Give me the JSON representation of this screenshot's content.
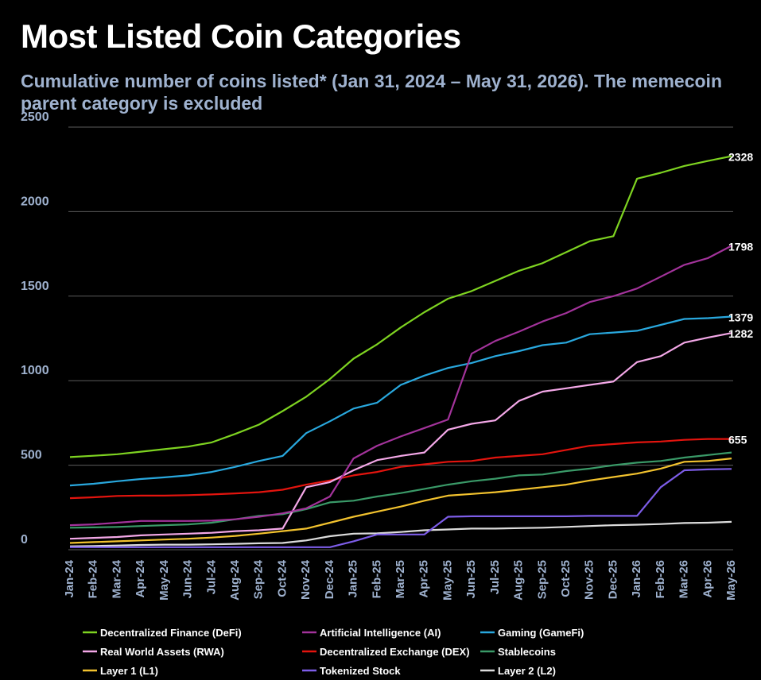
{
  "chart_data": {
    "type": "line",
    "title": "Most Listed Coin Categories",
    "subtitle": "Cumulative number of coins listed* (Jan 31, 2024 – May 31, 2026). The memecoin parent category is excluded",
    "categories": [
      "Jan-24",
      "Feb-24",
      "Mar-24",
      "Apr-24",
      "May-24",
      "Jun-24",
      "Jul-24",
      "Aug-24",
      "Sep-24",
      "Oct-24",
      "Nov-24",
      "Dec-24",
      "Jan-25",
      "Feb-25",
      "Mar-25",
      "Apr-25",
      "May-25",
      "Jun-25",
      "Jul-25",
      "Aug-25",
      "Sep-25",
      "Oct-25",
      "Nov-25",
      "Dec-25",
      "Jan-26",
      "Feb-26",
      "Mar-26",
      "Apr-26",
      "May-26"
    ],
    "ylim": [
      0,
      2500
    ],
    "yticks": [
      0,
      500,
      1000,
      1500,
      2000,
      2500
    ],
    "grid": true,
    "series": [
      {
        "name": "Decentralized Finance (DeFi)",
        "color": "#7ed321",
        "label_last": true,
        "values": [
          548,
          556,
          565,
          580,
          595,
          610,
          635,
          685,
          740,
          820,
          905,
          1010,
          1130,
          1215,
          1315,
          1405,
          1485,
          1530,
          1590,
          1650,
          1695,
          1760,
          1825,
          1855,
          2195,
          2230,
          2270,
          2300,
          2328
        ]
      },
      {
        "name": "Artificial Intelligence (AI)",
        "color": "#a3339b",
        "label_last": true,
        "values": [
          145,
          150,
          160,
          170,
          170,
          170,
          172,
          180,
          195,
          215,
          245,
          315,
          540,
          615,
          670,
          720,
          770,
          1160,
          1235,
          1290,
          1350,
          1400,
          1465,
          1500,
          1545,
          1615,
          1685,
          1725,
          1798
        ]
      },
      {
        "name": "Gaming (GameFi)",
        "color": "#29a8de",
        "label_last": true,
        "values": [
          380,
          390,
          405,
          418,
          428,
          440,
          460,
          490,
          525,
          555,
          690,
          760,
          835,
          870,
          975,
          1030,
          1075,
          1105,
          1145,
          1175,
          1210,
          1225,
          1275,
          1285,
          1295,
          1330,
          1365,
          1370,
          1379
        ]
      },
      {
        "name": "Real World Assets (RWA)",
        "color": "#f4a8e8",
        "label_last": true,
        "values": [
          65,
          70,
          75,
          85,
          90,
          95,
          100,
          110,
          115,
          125,
          370,
          400,
          470,
          530,
          555,
          575,
          710,
          745,
          765,
          880,
          935,
          955,
          975,
          995,
          1110,
          1145,
          1225,
          1255,
          1282
        ]
      },
      {
        "name": "Decentralized Exchange (DEX)",
        "color": "#e3140e",
        "label_last": true,
        "values": [
          305,
          310,
          318,
          320,
          320,
          323,
          327,
          333,
          340,
          355,
          385,
          410,
          440,
          460,
          490,
          505,
          520,
          525,
          545,
          555,
          565,
          590,
          615,
          625,
          635,
          640,
          650,
          655,
          655
        ]
      },
      {
        "name": "Stablecoins",
        "color": "#3a9a68",
        "label_last": false,
        "values": [
          130,
          132,
          135,
          140,
          145,
          150,
          160,
          180,
          200,
          210,
          240,
          280,
          290,
          315,
          335,
          360,
          385,
          405,
          420,
          440,
          445,
          465,
          480,
          500,
          515,
          525,
          545,
          560,
          575
        ]
      },
      {
        "name": "Layer 1 (L1)",
        "color": "#f2c22e",
        "label_last": false,
        "values": [
          40,
          45,
          50,
          55,
          60,
          65,
          72,
          82,
          95,
          110,
          125,
          160,
          195,
          225,
          255,
          290,
          320,
          330,
          340,
          355,
          370,
          385,
          410,
          430,
          450,
          480,
          520,
          525,
          540
        ]
      },
      {
        "name": "Tokenized Stock",
        "color": "#7d5de8",
        "label_last": false,
        "values": [
          15,
          15,
          15,
          15,
          15,
          15,
          15,
          15,
          15,
          15,
          15,
          15,
          50,
          90,
          90,
          90,
          195,
          198,
          198,
          198,
          198,
          198,
          200,
          200,
          200,
          370,
          470,
          475,
          478
        ]
      },
      {
        "name": "Layer 2 (L2)",
        "color": "#dcdcdc",
        "label_last": false,
        "values": [
          20,
          22,
          25,
          28,
          30,
          30,
          32,
          35,
          38,
          40,
          55,
          80,
          95,
          97,
          105,
          115,
          120,
          125,
          125,
          128,
          130,
          135,
          140,
          145,
          148,
          152,
          158,
          160,
          165
        ]
      }
    ]
  }
}
